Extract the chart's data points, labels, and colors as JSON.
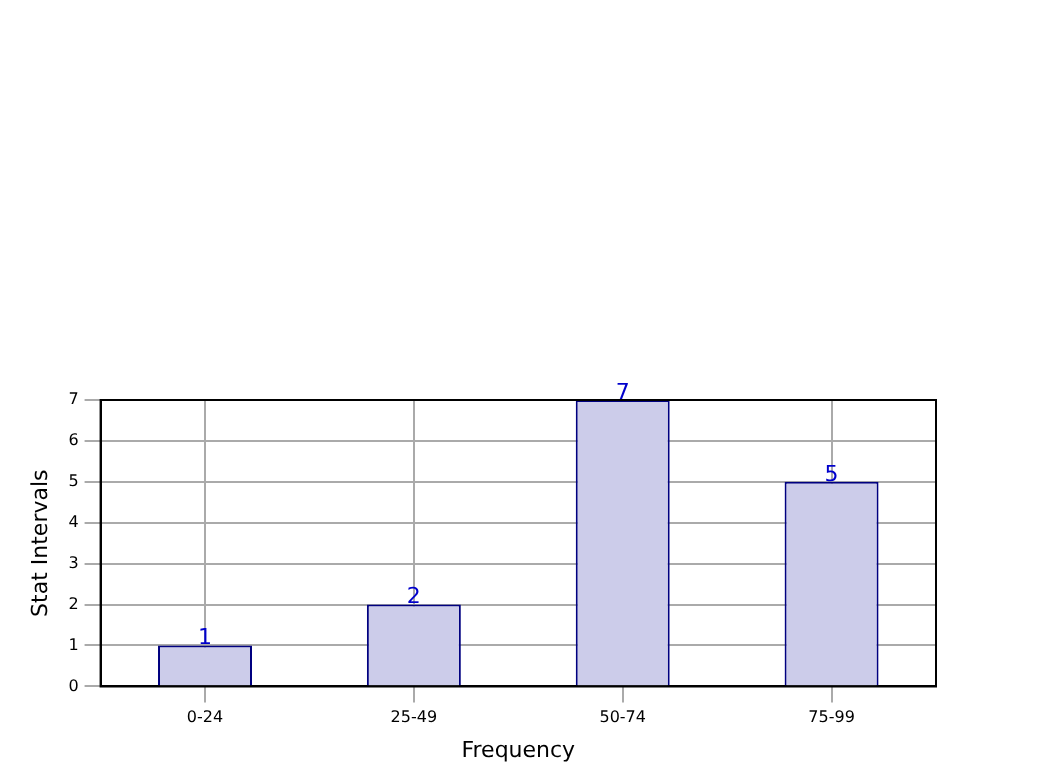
{
  "chart_data": {
    "type": "bar",
    "categories": [
      "0-24",
      "25-49",
      "50-74",
      "75-99"
    ],
    "values": [
      1,
      2,
      7,
      5
    ],
    "color": "#ccccea",
    "xlabel": "Frequency",
    "ylabel": "Stat Intervals",
    "ylim": [
      0,
      7
    ],
    "yticks": [
      0,
      1,
      2,
      3,
      4,
      5,
      6,
      7
    ],
    "grid": true,
    "data_labels": true,
    "legend": false
  }
}
